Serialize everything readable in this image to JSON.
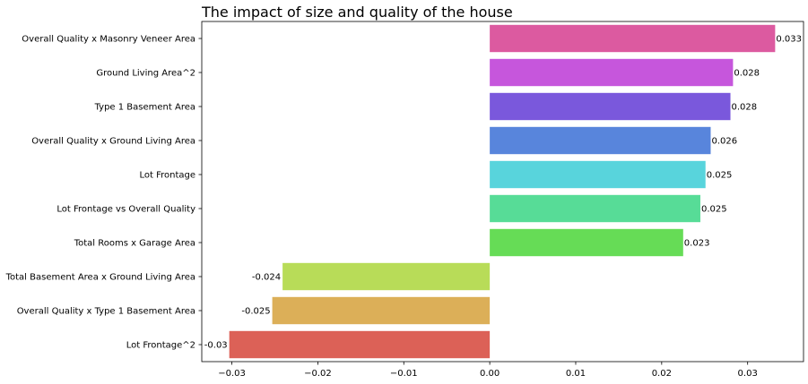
{
  "chart_data": {
    "type": "bar",
    "orientation": "horizontal",
    "title": "The impact of size and quality of the house",
    "xlabel": "",
    "ylabel": "",
    "categories": [
      "Overall Quality x Masonry Veneer Area",
      "Ground Living Area^2",
      "Type 1 Basement Area",
      "Overall Quality x Ground Living Area",
      "Lot Frontage",
      "Lot Frontage vs Overall Quality",
      "Total Rooms x Garage Area",
      "Total Basement Area x Ground Living Area",
      "Overall Quality x Type 1 Basement Area",
      "Lot Frontage^2"
    ],
    "values": [
      0.0332,
      0.0283,
      0.028,
      0.0257,
      0.0251,
      0.0245,
      0.0225,
      -0.0241,
      -0.0253,
      -0.0303
    ],
    "data_labels": [
      "0.033",
      "0.028",
      "0.028",
      "0.026",
      "0.025",
      "0.025",
      "0.023",
      "-0.024",
      "-0.025",
      "-0.03"
    ],
    "colors": [
      "#dc5aa0",
      "#c656dc",
      "#7a58dc",
      "#5885dc",
      "#58d4dc",
      "#57dc97",
      "#66dc56",
      "#b8dc58",
      "#dcaf58",
      "#dc6157"
    ],
    "xlim": [
      -0.0335,
      0.0365
    ],
    "xticks": [
      -0.03,
      -0.02,
      -0.01,
      0.0,
      0.01,
      0.02,
      0.03
    ],
    "xtick_labels": [
      "−0.03",
      "−0.02",
      "−0.01",
      "0.00",
      "0.01",
      "0.02",
      "0.03"
    ],
    "grid": false,
    "legend": "none"
  }
}
